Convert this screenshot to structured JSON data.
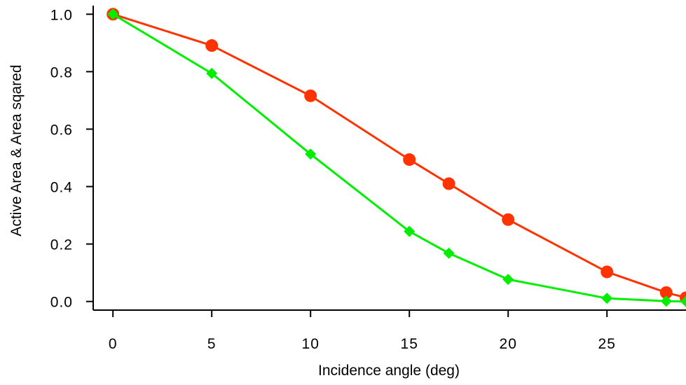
{
  "chart_data": {
    "type": "line",
    "title": "",
    "xlabel": "Incidence angle (deg)",
    "ylabel": "Active Area & Area sqared",
    "xlim": [
      -1,
      29
    ],
    "ylim": [
      -0.03,
      1.03
    ],
    "xticks": [
      0,
      5,
      10,
      15,
      20,
      25
    ],
    "xtick_labels": [
      "0",
      "5",
      "10",
      "15",
      "20",
      "25"
    ],
    "yticks": [
      0.0,
      0.2,
      0.4,
      0.6,
      0.8,
      1.0
    ],
    "ytick_labels": [
      "0.0",
      "0.2",
      "0.4",
      "0.6",
      "0.8",
      "1.0"
    ],
    "grid": false,
    "legend": "none",
    "series": [
      {
        "color": "#ff3300",
        "marker": "circle",
        "x": [
          0,
          5,
          10,
          15,
          17,
          20,
          25,
          28,
          29
        ],
        "y": [
          1.0,
          0.891,
          0.716,
          0.494,
          0.41,
          0.285,
          0.103,
          0.031,
          0.013
        ]
      },
      {
        "color": "#00ee00",
        "marker": "diamond",
        "x": [
          0,
          5,
          10,
          15,
          17,
          20,
          25,
          28,
          29
        ],
        "y": [
          1.0,
          0.794,
          0.513,
          0.244,
          0.168,
          0.077,
          0.011,
          0.001,
          0.0
        ]
      }
    ]
  }
}
